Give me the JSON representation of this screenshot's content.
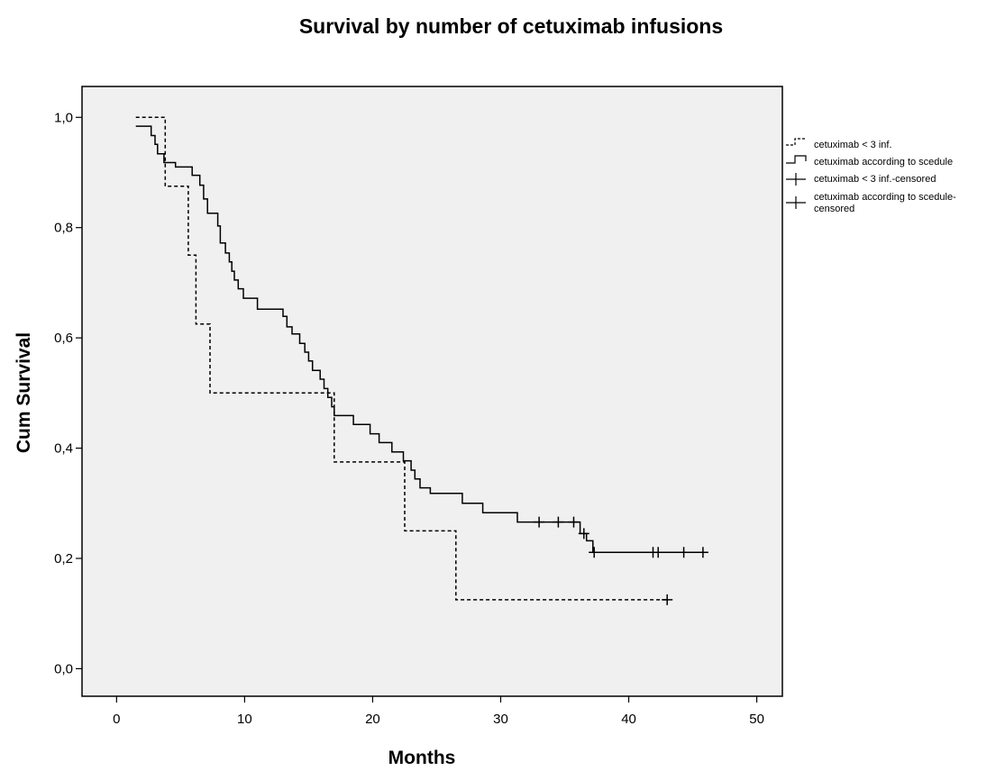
{
  "chart_data": {
    "type": "line",
    "title": "Survival by number of cetuximab infusions",
    "xlabel": "Months",
    "ylabel": "Cum Survival",
    "xlim": [
      -2.7,
      52
    ],
    "ylim": [
      -0.05,
      1.056
    ],
    "x_ticks": [
      0,
      10,
      20,
      30,
      40,
      50
    ],
    "x_tick_labels": [
      "0",
      "10",
      "20",
      "30",
      "40",
      "50"
    ],
    "y_ticks": [
      0.0,
      0.2,
      0.4,
      0.6,
      0.8,
      1.0
    ],
    "y_tick_labels": [
      "0,0",
      "0,2",
      "0,4",
      "0,6",
      "0,8",
      "1,0"
    ],
    "grid": false,
    "plot_background": "#f0f0f0",
    "legend_placement": "right-outside",
    "legend": [
      "cetuximab < 3 inf.",
      "cetuximab according to scedule",
      "cetuximab < 3 inf.-censored",
      [
        "cetuximab according to scedule-",
        "censored"
      ]
    ],
    "series": [
      {
        "name": "cetuximab < 3 inf.",
        "style": "dashed",
        "steps": [
          [
            1.5,
            1.0
          ],
          [
            3.8,
            0.875
          ],
          [
            5.6,
            0.75
          ],
          [
            6.2,
            0.625
          ],
          [
            7.3,
            0.5
          ],
          [
            17.0,
            0.375
          ],
          [
            22.5,
            0.25
          ],
          [
            26.5,
            0.125
          ],
          [
            43.0,
            0.125
          ]
        ],
        "censored": [
          [
            43.0,
            0.125
          ]
        ]
      },
      {
        "name": "cetuximab according to scedule",
        "style": "solid",
        "steps": [
          [
            1.5,
            0.984
          ],
          [
            2.7,
            0.967
          ],
          [
            3.0,
            0.951
          ],
          [
            3.2,
            0.934
          ],
          [
            3.7,
            0.918
          ],
          [
            4.6,
            0.91
          ],
          [
            5.9,
            0.895
          ],
          [
            6.5,
            0.877
          ],
          [
            6.8,
            0.852
          ],
          [
            7.1,
            0.826
          ],
          [
            7.9,
            0.803
          ],
          [
            8.1,
            0.772
          ],
          [
            8.5,
            0.754
          ],
          [
            8.8,
            0.738
          ],
          [
            9.0,
            0.721
          ],
          [
            9.2,
            0.705
          ],
          [
            9.5,
            0.689
          ],
          [
            9.9,
            0.672
          ],
          [
            11.0,
            0.652
          ],
          [
            13.0,
            0.639
          ],
          [
            13.3,
            0.62
          ],
          [
            13.7,
            0.607
          ],
          [
            14.3,
            0.59
          ],
          [
            14.7,
            0.574
          ],
          [
            15.0,
            0.558
          ],
          [
            15.3,
            0.541
          ],
          [
            15.9,
            0.525
          ],
          [
            16.2,
            0.508
          ],
          [
            16.5,
            0.492
          ],
          [
            16.8,
            0.475
          ],
          [
            17.0,
            0.459
          ],
          [
            18.5,
            0.443
          ],
          [
            19.8,
            0.426
          ],
          [
            20.5,
            0.41
          ],
          [
            21.5,
            0.393
          ],
          [
            22.4,
            0.377
          ],
          [
            23.0,
            0.36
          ],
          [
            23.3,
            0.344
          ],
          [
            23.7,
            0.328
          ],
          [
            24.5,
            0.318
          ],
          [
            27.0,
            0.3
          ],
          [
            28.6,
            0.283
          ],
          [
            31.3,
            0.266
          ],
          [
            36.2,
            0.245
          ],
          [
            36.7,
            0.232
          ],
          [
            37.2,
            0.211
          ],
          [
            46.0,
            0.211
          ]
        ],
        "censored": [
          [
            33.0,
            0.266
          ],
          [
            34.5,
            0.266
          ],
          [
            35.7,
            0.266
          ],
          [
            36.5,
            0.245
          ],
          [
            37.3,
            0.211
          ],
          [
            41.9,
            0.211
          ],
          [
            42.3,
            0.211
          ],
          [
            44.3,
            0.211
          ],
          [
            45.8,
            0.211
          ]
        ]
      }
    ]
  }
}
